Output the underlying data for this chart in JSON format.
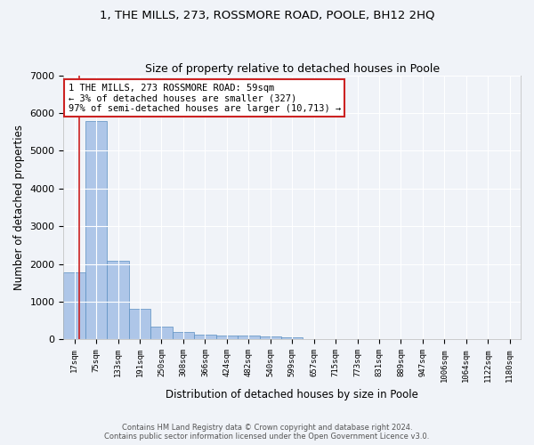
{
  "title_line1": "1, THE MILLS, 273, ROSSMORE ROAD, POOLE, BH12 2HQ",
  "title_line2": "Size of property relative to detached houses in Poole",
  "xlabel": "Distribution of detached houses by size in Poole",
  "ylabel": "Number of detached properties",
  "bin_labels": [
    "17sqm",
    "75sqm",
    "133sqm",
    "191sqm",
    "250sqm",
    "308sqm",
    "366sqm",
    "424sqm",
    "482sqm",
    "540sqm",
    "599sqm",
    "657sqm",
    "715sqm",
    "773sqm",
    "831sqm",
    "889sqm",
    "947sqm",
    "1006sqm",
    "1064sqm",
    "1122sqm",
    "1180sqm"
  ],
  "bar_values": [
    1780,
    5780,
    2080,
    800,
    340,
    190,
    120,
    105,
    105,
    75,
    65,
    0,
    0,
    0,
    0,
    0,
    0,
    0,
    0,
    0,
    0
  ],
  "bar_color": "#aec6e8",
  "bar_edge_color": "#5a8fc2",
  "highlight_color": "#cc2222",
  "annotation_text": "1 THE MILLS, 273 ROSSMORE ROAD: 59sqm\n← 3% of detached houses are smaller (327)\n97% of semi-detached houses are larger (10,713) →",
  "annotation_box_color": "#ffffff",
  "annotation_box_edge_color": "#cc2222",
  "vline_x": 0.35,
  "ylim": [
    0,
    7000
  ],
  "yticks": [
    0,
    1000,
    2000,
    3000,
    4000,
    5000,
    6000,
    7000
  ],
  "footer_line1": "Contains HM Land Registry data © Crown copyright and database right 2024.",
  "footer_line2": "Contains public sector information licensed under the Open Government Licence v3.0.",
  "background_color": "#f0f3f8",
  "plot_background_color": "#f0f3f8",
  "grid_color": "#ffffff"
}
